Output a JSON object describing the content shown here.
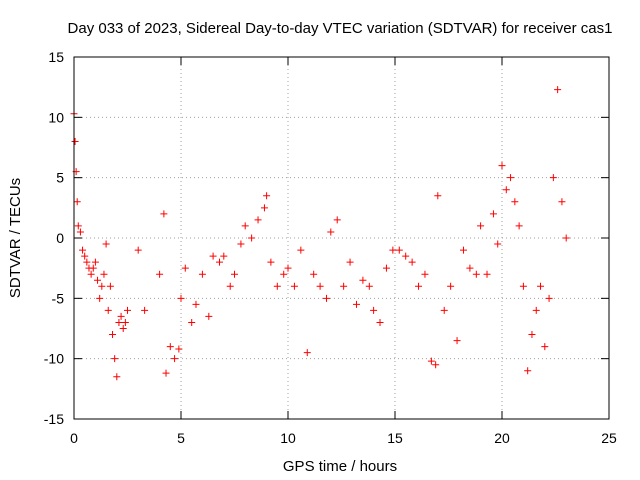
{
  "chart_data": {
    "type": "scatter",
    "title": "Day 033 of 2023, Sidereal Day-to-day VTEC variation (SDTVAR) for receiver cas1",
    "xlabel": "GPS time / hours",
    "ylabel": "SDTVAR / TECUs",
    "xlim": [
      0,
      25
    ],
    "ylim": [
      -15,
      15
    ],
    "xticks": [
      0,
      5,
      10,
      15,
      20,
      25
    ],
    "yticks": [
      -15,
      -10,
      -5,
      0,
      5,
      10,
      15
    ],
    "grid": true,
    "marker": "+",
    "series": [
      {
        "name": "cas1",
        "color": "#ff0000",
        "x": [
          0.0,
          0.05,
          0.1,
          0.15,
          0.2,
          0.3,
          0.4,
          0.5,
          0.6,
          0.7,
          0.8,
          0.9,
          1.0,
          1.1,
          1.2,
          1.3,
          1.4,
          1.5,
          1.6,
          1.7,
          1.8,
          1.9,
          2.0,
          2.1,
          2.2,
          2.3,
          2.4,
          2.5,
          3.0,
          3.3,
          4.0,
          4.2,
          4.3,
          4.5,
          4.7,
          4.9,
          5.0,
          5.2,
          5.5,
          5.7,
          6.0,
          6.3,
          6.5,
          6.8,
          7.0,
          7.3,
          7.5,
          7.8,
          8.0,
          8.3,
          8.6,
          8.9,
          9.0,
          9.2,
          9.5,
          9.8,
          10.0,
          10.3,
          10.6,
          10.9,
          11.2,
          11.5,
          11.8,
          12.0,
          12.3,
          12.6,
          12.9,
          13.2,
          13.5,
          13.8,
          14.0,
          14.3,
          14.6,
          14.9,
          15.2,
          15.5,
          15.8,
          16.1,
          16.4,
          16.7,
          16.9,
          17.0,
          17.3,
          17.6,
          17.9,
          18.2,
          18.5,
          18.8,
          19.0,
          19.3,
          19.6,
          19.8,
          20.0,
          20.2,
          20.4,
          20.6,
          20.8,
          21.0,
          21.2,
          21.4,
          21.6,
          21.8,
          22.0,
          22.2,
          22.4,
          22.6,
          22.8,
          23.0
        ],
        "y": [
          10.3,
          8.0,
          5.5,
          3.0,
          1.0,
          0.5,
          -1.0,
          -1.5,
          -2.0,
          -2.5,
          -3.0,
          -2.5,
          -2.0,
          -3.5,
          -5.0,
          -4.0,
          -3.0,
          -0.5,
          -6.0,
          -4.0,
          -8.0,
          -10.0,
          -11.5,
          -7.0,
          -6.5,
          -7.5,
          -7.0,
          -6.0,
          -1.0,
          -6.0,
          -3.0,
          2.0,
          -11.2,
          -9.0,
          -10.0,
          -9.2,
          -5.0,
          -2.5,
          -7.0,
          -5.5,
          -3.0,
          -6.5,
          -1.5,
          -2.0,
          -1.5,
          -4.0,
          -3.0,
          -0.5,
          1.0,
          0.0,
          1.5,
          2.5,
          3.5,
          -2.0,
          -4.0,
          -3.0,
          -2.5,
          -4.0,
          -1.0,
          -9.5,
          -3.0,
          -4.0,
          -5.0,
          0.5,
          1.5,
          -4.0,
          -2.0,
          -5.5,
          -3.5,
          -4.0,
          -6.0,
          -7.0,
          -2.5,
          -1.0,
          -1.0,
          -1.5,
          -2.0,
          -4.0,
          -3.0,
          -10.2,
          -10.5,
          3.5,
          -6.0,
          -4.0,
          -8.5,
          -1.0,
          -2.5,
          -3.0,
          1.0,
          -3.0,
          2.0,
          -0.5,
          6.0,
          4.0,
          5.0,
          3.0,
          1.0,
          -4.0,
          -11.0,
          -8.0,
          -6.0,
          -4.0,
          -9.0,
          -5.0,
          5.0,
          12.3,
          3.0,
          0.0
        ]
      }
    ]
  }
}
